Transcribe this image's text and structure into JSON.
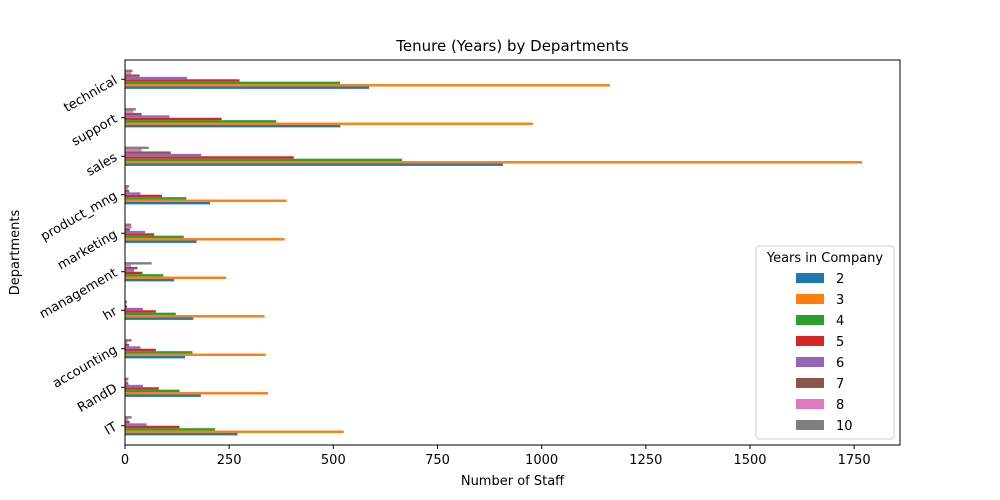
{
  "chart_data": {
    "type": "bar",
    "orientation": "horizontal",
    "title": "Tenure (Years) by Departments",
    "xlabel": "Number of Staff",
    "ylabel": "Departments",
    "xlim": [
      0,
      1860
    ],
    "xticks": [
      0,
      250,
      500,
      750,
      1000,
      1250,
      1500,
      1750
    ],
    "categories": [
      "IT",
      "RandD",
      "accounting",
      "hr",
      "management",
      "marketing",
      "product_mng",
      "sales",
      "support",
      "technical"
    ],
    "legend": {
      "title": "Years in Company",
      "placement": "lower-right"
    },
    "grid": false,
    "series": [
      {
        "name": "2",
        "color": "#1f77b4",
        "values": [
          270,
          182,
          144,
          164,
          118,
          172,
          204,
          907,
          517,
          586
        ]
      },
      {
        "name": "3",
        "color": "#ff7f0e",
        "values": [
          525,
          343,
          338,
          335,
          243,
          383,
          388,
          1769,
          979,
          1164
        ]
      },
      {
        "name": "4",
        "color": "#2ca02c",
        "values": [
          216,
          131,
          162,
          122,
          92,
          141,
          147,
          665,
          363,
          516
        ]
      },
      {
        "name": "5",
        "color": "#d62728",
        "values": [
          131,
          81,
          74,
          74,
          42,
          70,
          89,
          405,
          232,
          275
        ]
      },
      {
        "name": "6",
        "color": "#9467bd",
        "values": [
          52,
          43,
          37,
          43,
          22,
          48,
          37,
          183,
          107,
          149
        ]
      },
      {
        "name": "7",
        "color": "#8c564b",
        "values": [
          11,
          8,
          10,
          5,
          30,
          12,
          10,
          110,
          40,
          35
        ]
      },
      {
        "name": "8",
        "color": "#e377c2",
        "values": [
          8,
          6,
          6,
          3,
          15,
          16,
          7,
          40,
          20,
          15
        ]
      },
      {
        "name": "10",
        "color": "#7f7f7f",
        "values": [
          16,
          8,
          16,
          5,
          64,
          15,
          10,
          57,
          26,
          18
        ]
      }
    ]
  }
}
